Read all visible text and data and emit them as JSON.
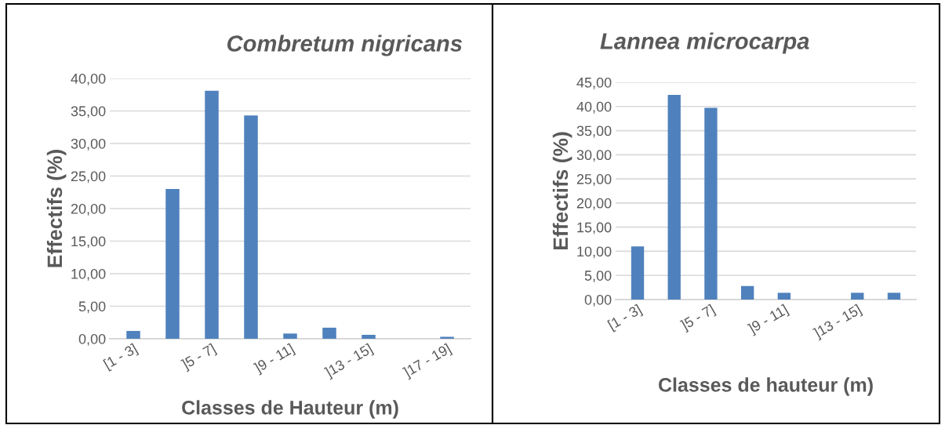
{
  "chart_data": [
    {
      "type": "bar",
      "title": "Combretum nigricans",
      "xlabel": "Classes de Hauteur (m)",
      "ylabel": "Effectifs (%)",
      "categories": [
        "[1 - 3]",
        null,
        "]5 - 7]",
        null,
        "]9 - 11]",
        null,
        "]13 - 15]",
        null,
        "]17 - 19]"
      ],
      "series": [
        {
          "color": "#4f81bd",
          "values": [
            1.2,
            23.0,
            38.1,
            34.3,
            0.8,
            1.7,
            0.6,
            0,
            0.3
          ]
        }
      ],
      "ylim": [
        0,
        40
      ],
      "yticks": [
        {
          "value": 0,
          "label": "0,00"
        },
        {
          "value": 5,
          "label": "5,00"
        },
        {
          "value": 10,
          "label": "10,00"
        },
        {
          "value": 15,
          "label": "15,00"
        },
        {
          "value": 20,
          "label": "20,00"
        },
        {
          "value": 25,
          "label": "25,00"
        },
        {
          "value": 30,
          "label": "30,00"
        },
        {
          "value": 35,
          "label": "35,00"
        },
        {
          "value": 40,
          "label": "40,00"
        }
      ],
      "grid": "y"
    },
    {
      "type": "bar",
      "title": "Lannea microcarpa",
      "xlabel": "Classes de hauteur (m)",
      "ylabel": "Effectifs (%)",
      "categories": [
        "[1 - 3]",
        null,
        "]5 - 7]",
        null,
        "]9 - 11]",
        null,
        "]13 - 15]",
        null
      ],
      "series": [
        {
          "color": "#4f81bd",
          "values": [
            11.0,
            42.4,
            39.7,
            2.8,
            1.4,
            0,
            1.4,
            1.4
          ]
        }
      ],
      "ylim": [
        0,
        45
      ],
      "yticks": [
        {
          "value": 0,
          "label": "0,00"
        },
        {
          "value": 5,
          "label": "5,00"
        },
        {
          "value": 10,
          "label": "10,00"
        },
        {
          "value": 15,
          "label": "15,00"
        },
        {
          "value": 20,
          "label": "20,00"
        },
        {
          "value": 25,
          "label": "25,00"
        },
        {
          "value": 30,
          "label": "30,00"
        },
        {
          "value": 35,
          "label": "35,00"
        },
        {
          "value": 40,
          "label": "40,00"
        },
        {
          "value": 45,
          "label": "45,00"
        }
      ],
      "grid": "y"
    }
  ]
}
